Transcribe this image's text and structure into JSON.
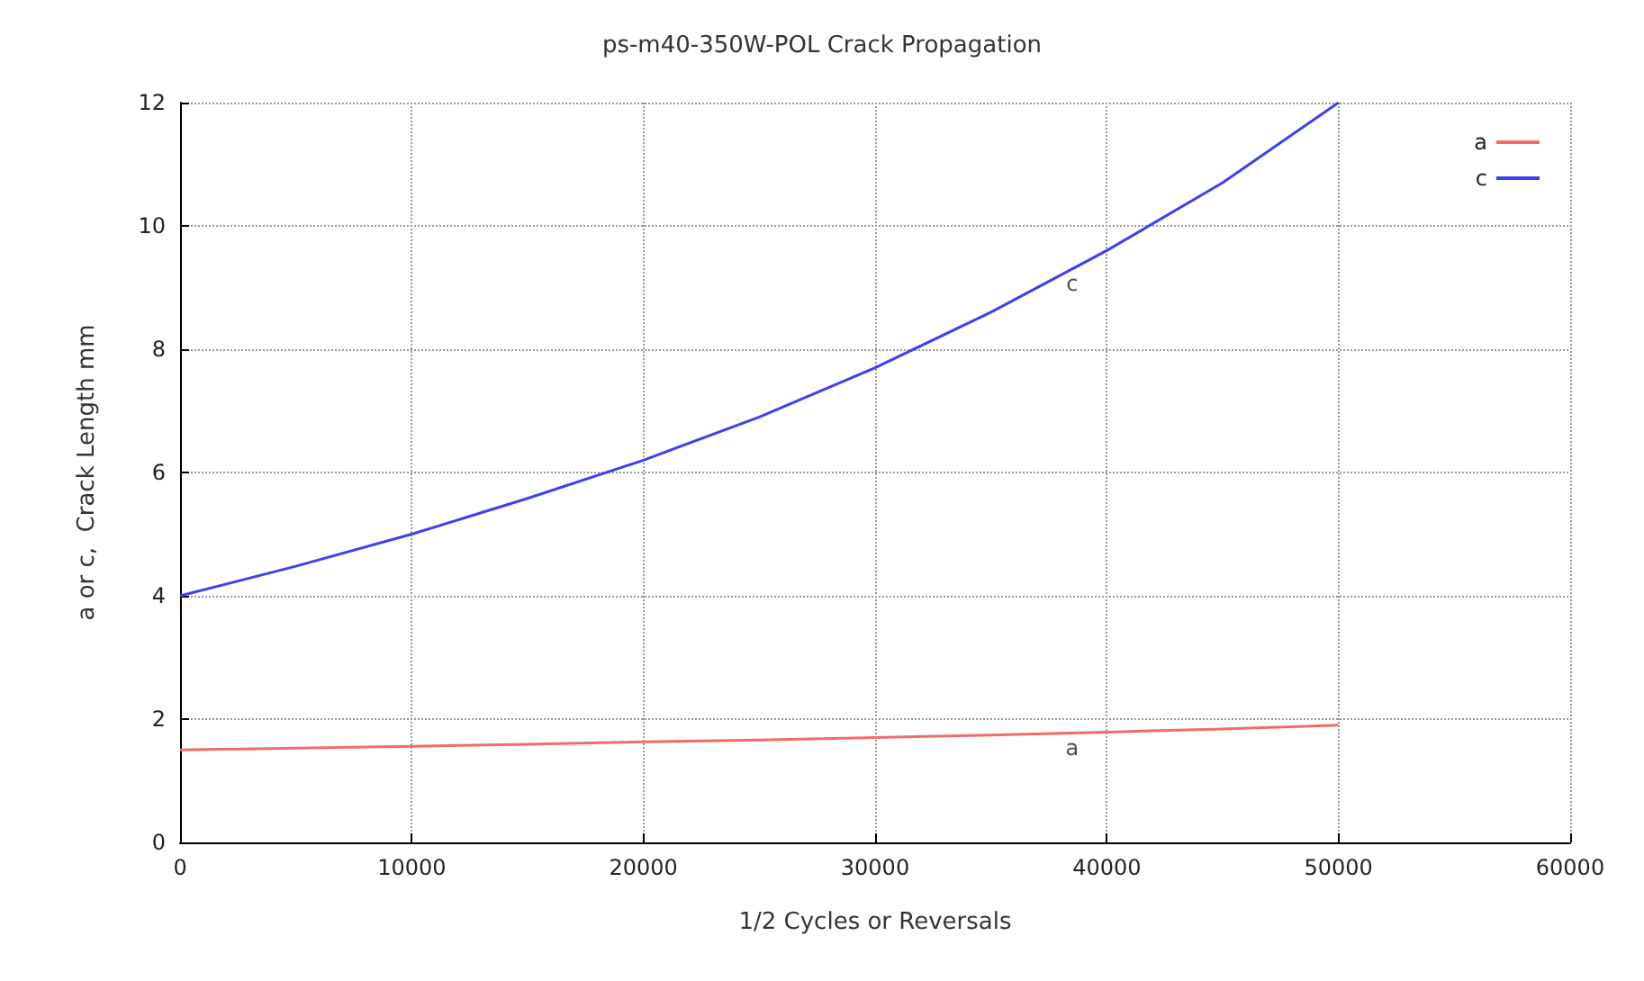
{
  "chart_data": {
    "type": "line",
    "title": "ps-m40-350W-POL Crack Propagation",
    "xlabel": "1/2 Cycles or Reversals",
    "ylabel": "a or c,  Crack Length mm",
    "x": [
      0,
      5000,
      10000,
      15000,
      20000,
      25000,
      30000,
      35000,
      40000,
      45000,
      50000
    ],
    "series": [
      {
        "name": "a",
        "color": "#f26b6b",
        "values": [
          1.5,
          1.53,
          1.56,
          1.59,
          1.63,
          1.66,
          1.7,
          1.74,
          1.79,
          1.84,
          1.9
        ]
      },
      {
        "name": "c",
        "color": "#3f3ff2",
        "values": [
          4.0,
          4.48,
          5.0,
          5.58,
          6.2,
          6.9,
          7.7,
          8.6,
          9.6,
          10.7,
          12.0
        ]
      }
    ],
    "annotations": [
      {
        "text": "a",
        "x": 38500,
        "y": 1.77
      },
      {
        "text": "c",
        "x": 38500,
        "y": 9.3
      }
    ],
    "xlim": [
      0,
      60000
    ],
    "xticks": [
      0,
      10000,
      20000,
      30000,
      40000,
      50000,
      60000
    ],
    "ylim": [
      0,
      12
    ],
    "yticks": [
      0,
      2,
      4,
      6,
      8,
      10,
      12
    ],
    "grid": true,
    "legend": "top right",
    "line_style": "solid",
    "marker": "none"
  }
}
